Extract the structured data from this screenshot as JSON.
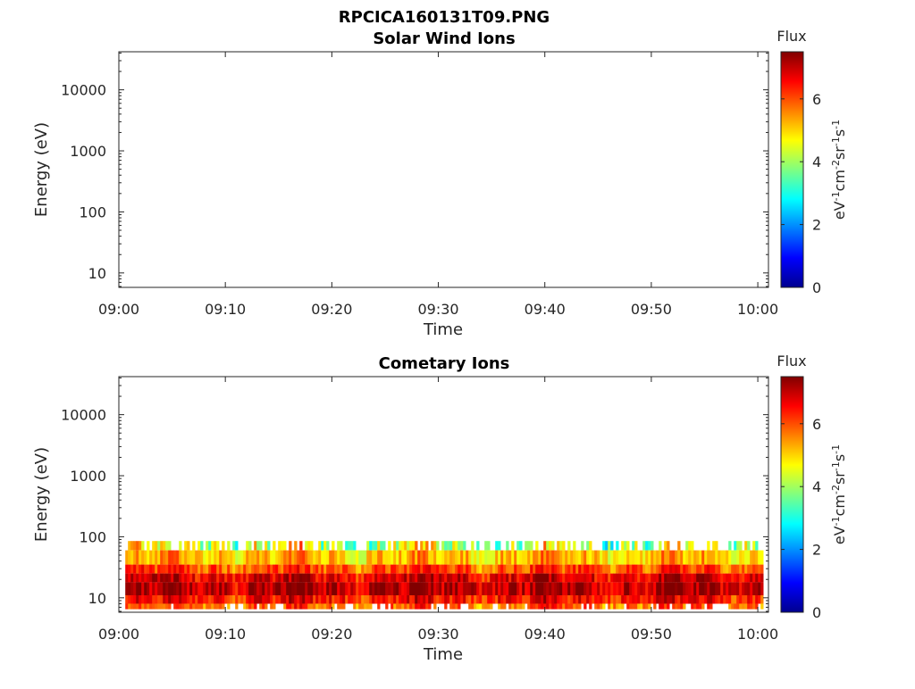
{
  "figure": {
    "title": "RPCICA160131T09.PNG"
  },
  "colormap": [
    "#00008f",
    "#0000ff",
    "#0080ff",
    "#00ffff",
    "#80ff80",
    "#ffff00",
    "#ff8000",
    "#ff0000",
    "#800000"
  ],
  "chart_data": [
    {
      "type": "heatmap",
      "title": "Solar Wind Ions",
      "xlabel": "Time",
      "ylabel": "Energy (eV)",
      "x_ticks": [
        "09:00",
        "09:10",
        "09:20",
        "09:30",
        "09:40",
        "09:50",
        "10:00"
      ],
      "x_range_minutes": [
        0,
        61
      ],
      "y_scale": "log",
      "y_ticks": [
        {
          "value": 10,
          "label": "10"
        },
        {
          "value": 100,
          "label": "100"
        },
        {
          "value": 1000,
          "label": "1000"
        },
        {
          "value": 10000,
          "label": "10000"
        }
      ],
      "y_range": [
        5.8,
        42000
      ],
      "colorbar": {
        "title": "Flux",
        "label": "eV-1cm-2sr-1s-1",
        "ticks": [
          {
            "value": 0,
            "label": "0"
          },
          {
            "value": 2,
            "label": "2"
          },
          {
            "value": 4,
            "label": "4"
          },
          {
            "value": 6,
            "label": "6"
          }
        ],
        "range": [
          0,
          7.5
        ]
      },
      "data": []
    },
    {
      "type": "heatmap",
      "title": "Cometary Ions",
      "xlabel": "Time",
      "ylabel": "Energy (eV)",
      "x_ticks": [
        "09:00",
        "09:10",
        "09:20",
        "09:30",
        "09:40",
        "09:50",
        "10:00"
      ],
      "x_range_minutes": [
        0,
        61
      ],
      "y_scale": "log",
      "y_ticks": [
        {
          "value": 10,
          "label": "10"
        },
        {
          "value": 100,
          "label": "100"
        },
        {
          "value": 1000,
          "label": "1000"
        },
        {
          "value": 10000,
          "label": "10000"
        }
      ],
      "y_range": [
        5.8,
        42000
      ],
      "colorbar": {
        "title": "Flux",
        "label": "eV-1cm-2sr-1s-1",
        "ticks": [
          {
            "value": 0,
            "label": "0"
          },
          {
            "value": 2,
            "label": "2"
          },
          {
            "value": 4,
            "label": "4"
          },
          {
            "value": 6,
            "label": "6"
          }
        ],
        "range": [
          0,
          7.5
        ]
      },
      "data": [
        {
          "energy_range": [
            60,
            85
          ],
          "flux": 4.2
        },
        {
          "energy_range": [
            35,
            60
          ],
          "flux": 5.2
        },
        {
          "energy_range": [
            25,
            35
          ],
          "flux": 6.0
        },
        {
          "energy_range": [
            18,
            25
          ],
          "flux": 6.8
        },
        {
          "energy_range": [
            11,
            18
          ],
          "flux": 7.1
        },
        {
          "energy_range": [
            8,
            11
          ],
          "flux": 6.5
        },
        {
          "energy_range": [
            6.5,
            8
          ],
          "flux": 5.8
        }
      ]
    }
  ]
}
